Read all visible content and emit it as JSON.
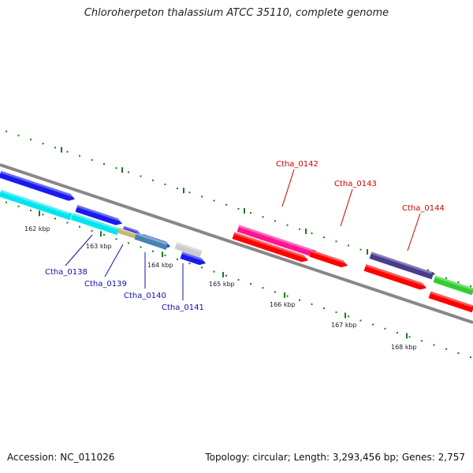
{
  "title": "Chloroherpeton thalassium ATCC 35110, complete genome",
  "footer": {
    "accession": "Accession: NC_011026",
    "summary": "Topology: circular; Length: 3,293,456 bp; Genes: 2,757"
  },
  "colors": {
    "backbone": "#888888",
    "tick": "#1a7a1a",
    "label_blue": "#1010b0",
    "label_red": "#cc0000"
  },
  "ticks": [
    "162 kbp",
    "163 kbp",
    "164 kbp",
    "165 kbp",
    "166 kbp",
    "167 kbp",
    "168 kbp"
  ],
  "labels": [
    {
      "text": "Ctha_0138",
      "color": "#1010b0"
    },
    {
      "text": "Ctha_0139",
      "color": "#1010b0"
    },
    {
      "text": "Ctha_0140",
      "color": "#1010b0"
    },
    {
      "text": "Ctha_0141",
      "color": "#1010b0"
    },
    {
      "text": "Ctha_0142",
      "color": "#cc0000"
    },
    {
      "text": "Ctha_0143",
      "color": "#cc0000"
    },
    {
      "text": "Ctha_0144",
      "color": "#cc0000"
    }
  ],
  "features": [
    {
      "color": "#1a1aee"
    },
    {
      "color": "#1a1aee"
    },
    {
      "color": "#1a1aee"
    },
    {
      "color": "#1a1aee"
    },
    {
      "color": "#1a1aee"
    },
    {
      "color": "#00e5ee"
    },
    {
      "color": "#00e5ee"
    },
    {
      "color": "#c8b870"
    },
    {
      "color": "#4682b4"
    },
    {
      "color": "#cccccc"
    },
    {
      "color": "#ff1493"
    },
    {
      "color": "#ff0000"
    },
    {
      "color": "#ff0000"
    },
    {
      "color": "#483d8b"
    },
    {
      "color": "#ff0000"
    },
    {
      "color": "#32cd32"
    },
    {
      "color": "#ff0000"
    }
  ]
}
